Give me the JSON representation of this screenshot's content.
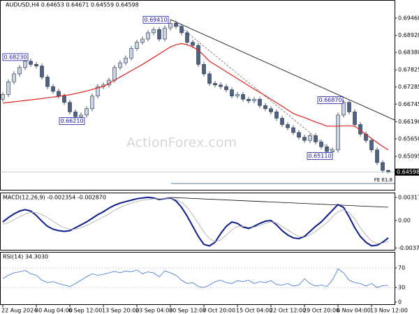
{
  "chart_data": [
    {
      "type": "candlestick",
      "title": "AUDUSD,H4  0.64653 0.64671 0.64559 0.64598",
      "watermark": "ActionForex.com",
      "categories": [
        "22 Aug 2024",
        null,
        null,
        null,
        null,
        null,
        "30 Aug 04:00",
        null,
        null,
        null,
        null,
        null,
        "6 Sep 12:00",
        null,
        null,
        null,
        null,
        null,
        "13 Sep 20:00",
        null,
        null,
        null,
        null,
        null,
        "23 Sep 04:00",
        null,
        null,
        null,
        null,
        null,
        "30 Sep 12:00",
        null,
        null,
        null,
        null,
        null,
        "7 Oct 20:00",
        null,
        null,
        null,
        null,
        null,
        "15 Oct 04:00",
        null,
        null,
        null,
        null,
        null,
        "22 Oct 12:00",
        null,
        null,
        null,
        null,
        null,
        "29 Oct 20:00",
        null,
        null,
        null,
        null,
        null,
        "6 Nov 04:00",
        null,
        null,
        null,
        null,
        null,
        "13 Nov 12:00",
        null,
        null,
        null
      ],
      "open": [
        0.669,
        0.6705,
        0.6745,
        0.677,
        0.679,
        0.681,
        0.68,
        0.6795,
        0.676,
        0.673,
        0.6715,
        0.67,
        0.668,
        0.665,
        0.6635,
        0.664,
        0.666,
        0.67,
        0.673,
        0.6735,
        0.675,
        0.679,
        0.6805,
        0.682,
        0.685,
        0.687,
        0.688,
        0.69,
        0.691,
        0.688,
        0.6915,
        0.693,
        0.692,
        0.69,
        0.687,
        0.686,
        0.68,
        0.677,
        0.674,
        0.6735,
        0.673,
        0.672,
        0.67,
        0.6705,
        0.669,
        0.6685,
        0.669,
        0.667,
        0.666,
        0.665,
        0.663,
        0.661,
        0.66,
        0.6585,
        0.657,
        0.656,
        0.6575,
        0.6555,
        0.654,
        0.6525,
        0.653,
        0.664,
        0.668,
        0.665,
        0.661,
        0.658,
        0.656,
        0.653,
        0.649,
        0.64653
      ],
      "high": [
        0.6713,
        0.6753,
        0.6778,
        0.6798,
        0.6823,
        0.6818,
        0.6808,
        0.6803,
        0.6768,
        0.6738,
        0.6723,
        0.6708,
        0.6688,
        0.6658,
        0.6648,
        0.6668,
        0.6708,
        0.6738,
        0.6743,
        0.6758,
        0.6798,
        0.6813,
        0.6828,
        0.6858,
        0.6878,
        0.6888,
        0.6908,
        0.6918,
        0.6918,
        0.6923,
        0.6941,
        0.6938,
        0.6928,
        0.6908,
        0.6878,
        0.6868,
        0.6808,
        0.6778,
        0.6748,
        0.6743,
        0.6738,
        0.6728,
        0.6713,
        0.6713,
        0.6698,
        0.6698,
        0.6698,
        0.6678,
        0.6668,
        0.6658,
        0.6638,
        0.6618,
        0.6608,
        0.6593,
        0.6578,
        0.6583,
        0.6583,
        0.6563,
        0.6548,
        0.6538,
        0.6648,
        0.6687,
        0.6686,
        0.6658,
        0.6618,
        0.6588,
        0.6568,
        0.6538,
        0.6498,
        0.64671
      ],
      "low": [
        0.6682,
        0.6697,
        0.6737,
        0.6762,
        0.6782,
        0.6792,
        0.6787,
        0.6752,
        0.6722,
        0.6707,
        0.6692,
        0.6672,
        0.6642,
        0.6621,
        0.6627,
        0.6632,
        0.6652,
        0.6692,
        0.6722,
        0.6727,
        0.6742,
        0.6782,
        0.6797,
        0.6812,
        0.6842,
        0.6862,
        0.6872,
        0.6892,
        0.6872,
        0.6872,
        0.6907,
        0.6912,
        0.6892,
        0.6862,
        0.6852,
        0.6792,
        0.6762,
        0.6732,
        0.6727,
        0.6722,
        0.6712,
        0.6692,
        0.6692,
        0.6682,
        0.6677,
        0.6677,
        0.6662,
        0.6652,
        0.6642,
        0.6622,
        0.6602,
        0.6592,
        0.6577,
        0.6562,
        0.6552,
        0.6552,
        0.6547,
        0.6532,
        0.6517,
        0.6511,
        0.6522,
        0.6632,
        0.6642,
        0.6602,
        0.6572,
        0.6552,
        0.6522,
        0.6482,
        0.6457,
        0.64559
      ],
      "close": [
        0.6705,
        0.6745,
        0.677,
        0.679,
        0.681,
        0.68,
        0.6795,
        0.676,
        0.673,
        0.6715,
        0.67,
        0.668,
        0.665,
        0.6635,
        0.664,
        0.666,
        0.67,
        0.673,
        0.6735,
        0.675,
        0.679,
        0.6805,
        0.682,
        0.685,
        0.687,
        0.688,
        0.69,
        0.691,
        0.688,
        0.6915,
        0.693,
        0.692,
        0.69,
        0.687,
        0.686,
        0.68,
        0.677,
        0.674,
        0.6735,
        0.673,
        0.672,
        0.67,
        0.6705,
        0.669,
        0.6685,
        0.669,
        0.667,
        0.666,
        0.665,
        0.663,
        0.661,
        0.66,
        0.6585,
        0.657,
        0.656,
        0.6575,
        0.6555,
        0.654,
        0.6525,
        0.653,
        0.664,
        0.668,
        0.665,
        0.661,
        0.658,
        0.656,
        0.653,
        0.649,
        0.64653,
        0.64598
      ],
      "bull_color": "#c9d3e3",
      "bear_color": "#4f6284",
      "outline_color": "#24334f",
      "ma": {
        "color": "#e0221b",
        "values": [
          0.6678,
          0.668,
          0.6682,
          0.6684,
          0.6686,
          0.6688,
          0.669,
          0.6692,
          0.6695,
          0.6697,
          0.6699,
          0.6702,
          0.6704,
          0.6708,
          0.6712,
          0.6716,
          0.6721,
          0.6726,
          0.673,
          0.674,
          0.675,
          0.676,
          0.677,
          0.678,
          0.679,
          0.68,
          0.6811,
          0.6822,
          0.6833,
          0.6844,
          0.6855,
          0.6862,
          0.6866,
          0.6862,
          0.6855,
          0.6845,
          0.6828,
          0.681,
          0.6799,
          0.6788,
          0.6777,
          0.6766,
          0.6755,
          0.6744,
          0.6733,
          0.6722,
          0.6712,
          0.6701,
          0.669,
          0.6679,
          0.6668,
          0.6656,
          0.6645,
          0.6638,
          0.6632,
          0.6625,
          0.6618,
          0.6612,
          0.6605,
          0.6605,
          0.6605,
          0.6606,
          0.6606,
          0.6605,
          0.6592,
          0.6579,
          0.6566,
          0.6553,
          0.6541,
          0.653
        ]
      },
      "annotations": [
        {
          "label": "0.68230",
          "value": 0.6823
        },
        {
          "label": "0.66210",
          "value": 0.6621
        },
        {
          "label": "0.69410",
          "value": 0.6941
        },
        {
          "label": "0.66870",
          "value": 0.6687
        },
        {
          "label": "0.65110",
          "value": 0.6511
        }
      ],
      "annotation_color": "#1a1aa6",
      "last_price": 0.64598,
      "fe_label": "FE 61.8",
      "ylim": [
        0.6404,
        0.6999
      ],
      "yticks": [
        {
          "value": 0.6946,
          "label": "0.69460"
        },
        {
          "value": 0.6892,
          "label": "0.68920"
        },
        {
          "value": 0.6838,
          "label": "0.68380"
        },
        0.67825,
        0.67285,
        0.66745,
        {
          "value": 0.6619,
          "label": "0.66190"
        },
        {
          "value": 0.6565,
          "label": "0.65650"
        },
        0.65095
      ]
    },
    {
      "type": "macd",
      "title": "MACD(12,26,9) -0.002354 -0.002870",
      "ylim": [
        -0.00404,
        0.00375
      ],
      "yticks": [
        0.003175,
        {
          "value": 0,
          "label": "0.00"
        },
        -0.00378
      ],
      "series": [
        {
          "color": "#0c1a8c",
          "values": [
            -0.0002,
            0.0004,
            0.0009,
            0.0013,
            0.0015,
            0.0013,
            0.0007,
            -0.0001,
            -0.0008,
            -0.0012,
            -0.0014,
            -0.0015,
            -0.0014,
            -0.001,
            -0.0006,
            -0.0002,
            0.0003,
            0.0008,
            0.0012,
            0.0017,
            0.0021,
            0.0024,
            0.0026,
            0.0028,
            0.003,
            0.0031,
            0.0032,
            0.0031,
            0.0029,
            0.003,
            0.0031,
            0.0027,
            0.0018,
            0.0006,
            -0.0008,
            -0.0022,
            -0.0033,
            -0.0035,
            -0.003,
            -0.0018,
            -0.0008,
            -0.0002,
            -0.0004,
            -0.0009,
            -0.0011,
            -0.0008,
            -0.0004,
            -0.0001,
            0.0,
            -0.0006,
            -0.0014,
            -0.002,
            -0.0024,
            -0.0025,
            -0.0022,
            -0.0015,
            -0.0008,
            -0.0002,
            0.0006,
            0.0014,
            0.0022,
            0.0018,
            0.0005,
            -0.001,
            -0.0022,
            -0.003,
            -0.0035,
            -0.0034,
            -0.003,
            -0.0024
          ]
        },
        {
          "color": "#a8a8a8",
          "values": [
            -0.0005,
            -0.0003,
            0.0001,
            0.0005,
            0.0009,
            0.0011,
            0.0011,
            0.0008,
            0.0004,
            -0.0001,
            -0.0006,
            -0.001,
            -0.0012,
            -0.0012,
            -0.001,
            -0.0007,
            -0.0003,
            0.0001,
            0.0005,
            0.0009,
            0.0014,
            0.0018,
            0.0021,
            0.0024,
            0.0026,
            0.0028,
            0.0029,
            0.003,
            0.003,
            0.003,
            0.003,
            0.0029,
            0.0025,
            0.0018,
            0.0008,
            -0.0004,
            -0.0016,
            -0.0025,
            -0.0029,
            -0.0027,
            -0.002,
            -0.0013,
            -0.0008,
            -0.0008,
            -0.0009,
            -0.0009,
            -0.0007,
            -0.0004,
            -0.0002,
            -0.0003,
            -0.0008,
            -0.0013,
            -0.0018,
            -0.0022,
            -0.0023,
            -0.002,
            -0.0015,
            -0.0009,
            -0.0003,
            0.0005,
            0.0012,
            0.0015,
            0.0011,
            0.0002,
            -0.001,
            -0.002,
            -0.0028,
            -0.0032,
            -0.0031,
            -0.0029
          ]
        }
      ]
    },
    {
      "type": "rsi",
      "title": "RSI(14) 34.3030",
      "ylim": [
        0,
        100
      ],
      "yticks": [
        70,
        30,
        0
      ],
      "levels": [
        70,
        30
      ],
      "color": "#3a6fd8",
      "values": [
        48,
        55,
        60,
        62,
        65,
        58,
        55,
        45,
        40,
        42,
        38,
        35,
        32,
        38,
        45,
        52,
        58,
        55,
        57,
        60,
        63,
        60,
        64,
        62,
        66,
        58,
        62,
        60,
        52,
        64,
        60,
        55,
        45,
        38,
        40,
        32,
        30,
        35,
        42,
        45,
        40,
        38,
        44,
        42,
        45,
        38,
        42,
        40,
        44,
        36,
        35,
        38,
        33,
        35,
        48,
        38,
        33,
        35,
        32,
        45,
        68,
        60,
        45,
        40,
        38,
        33,
        38,
        30,
        34,
        34.303
      ]
    }
  ]
}
